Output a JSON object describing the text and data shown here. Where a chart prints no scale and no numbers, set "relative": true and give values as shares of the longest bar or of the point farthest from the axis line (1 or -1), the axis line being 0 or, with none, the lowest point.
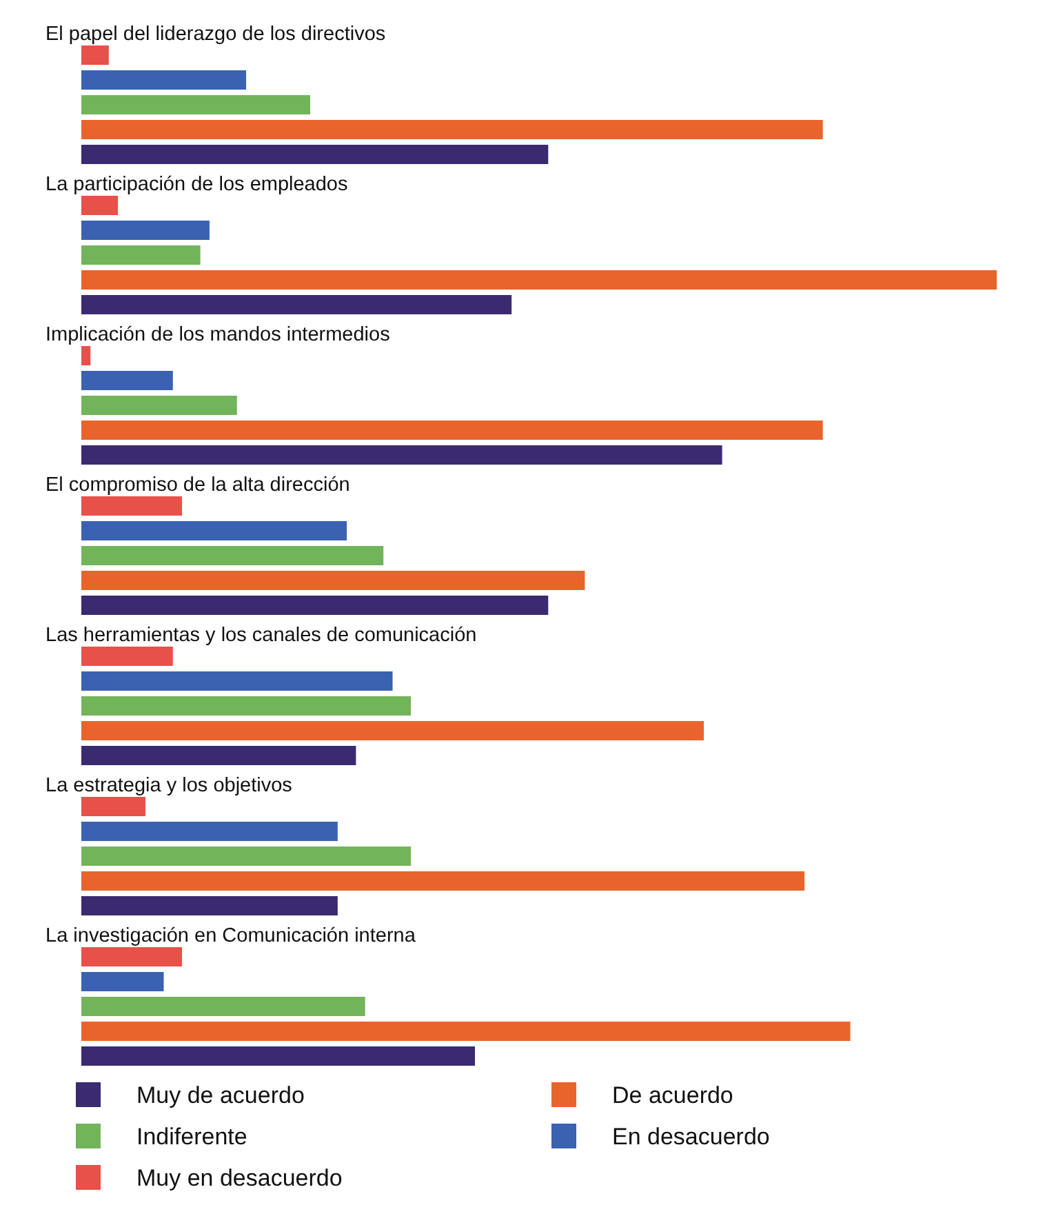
{
  "chart_data": {
    "type": "bar",
    "orientation": "horizontal",
    "relative": true,
    "legend": "bottom",
    "categories": [
      "El papel del liderazgo de los directivos",
      "La participación de los empleados",
      "Implicación de los mandos intermedios",
      "El compromiso de la alta dirección",
      "Las herramientas y los canales de comunicación",
      "La estrategia y los objetivos",
      "La investigación en Comunicación interna"
    ],
    "series": [
      {
        "name": "Muy en desacuerdo",
        "color": "#e8504a",
        "values": [
          0.03,
          0.04,
          0.01,
          0.11,
          0.1,
          0.07,
          0.11
        ]
      },
      {
        "name": "En desacuerdo",
        "color": "#3a62b0",
        "values": [
          0.18,
          0.14,
          0.1,
          0.29,
          0.34,
          0.28,
          0.09
        ]
      },
      {
        "name": "Indiferente",
        "color": "#72b45a",
        "values": [
          0.25,
          0.13,
          0.17,
          0.33,
          0.36,
          0.36,
          0.31
        ]
      },
      {
        "name": "De acuerdo",
        "color": "#e8642c",
        "values": [
          0.81,
          1,
          0.81,
          0.55,
          0.68,
          0.79,
          0.84
        ]
      },
      {
        "name": "Muy de acuerdo",
        "color": "#3a2a70",
        "values": [
          0.51,
          0.47,
          0.7,
          0.51,
          0.3,
          0.28,
          0.43
        ]
      }
    ]
  }
}
